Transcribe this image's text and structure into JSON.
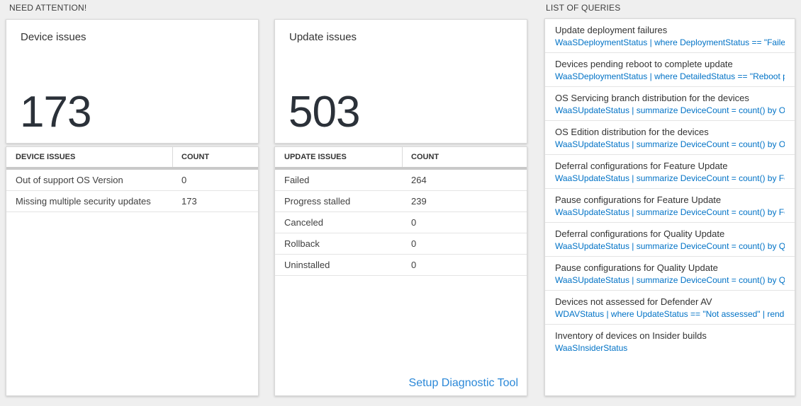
{
  "need_attention": {
    "header": "NEED ATTENTION!"
  },
  "queries_section": {
    "header": "LIST OF QUERIES"
  },
  "device_card": {
    "title": "Device issues",
    "value": "173"
  },
  "update_card": {
    "title": "Update issues",
    "value": "503"
  },
  "device_table": {
    "columns": [
      "DEVICE ISSUES",
      "COUNT"
    ],
    "rows": [
      [
        "Out of support OS Version",
        "0"
      ],
      [
        "Missing multiple security updates",
        "173"
      ]
    ]
  },
  "update_table": {
    "columns": [
      "UPDATE ISSUES",
      "COUNT"
    ],
    "rows": [
      [
        "Failed",
        "264"
      ],
      [
        "Progress stalled",
        "239"
      ],
      [
        "Canceled",
        "0"
      ],
      [
        "Rollback",
        "0"
      ],
      [
        "Uninstalled",
        "0"
      ]
    ]
  },
  "setup_link": "Setup Diagnostic Tool",
  "queries_list": [
    {
      "title": "Update deployment failures",
      "query": "WaaSDeploymentStatus | where DeploymentStatus == \"Failed\" |…"
    },
    {
      "title": "Devices pending reboot to complete update",
      "query": "WaaSDeploymentStatus | where DetailedStatus == \"Reboot pend…"
    },
    {
      "title": "OS Servicing branch distribution for the devices",
      "query": "WaaSUpdateStatus | summarize DeviceCount = count() by OSSer…"
    },
    {
      "title": "OS Edition distribution for the devices",
      "query": "WaaSUpdateStatus | summarize DeviceCount = count() by OSEdit…"
    },
    {
      "title": "Deferral configurations for Feature Update",
      "query": "WaaSUpdateStatus | summarize DeviceCount = count() by Featur…"
    },
    {
      "title": "Pause configurations for Feature Update",
      "query": "WaaSUpdateStatus | summarize DeviceCount = count() by Featur…"
    },
    {
      "title": "Deferral configurations for Quality Update",
      "query": "WaaSUpdateStatus | summarize DeviceCount = count() by Qualit…"
    },
    {
      "title": "Pause configurations for Quality Update",
      "query": "WaaSUpdateStatus | summarize DeviceCount = count() by Qualit…"
    },
    {
      "title": "Devices not assessed for Defender AV",
      "query": "WDAVStatus | where UpdateStatus == \"Not assessed\" | render ta…"
    },
    {
      "title": "Inventory of devices on Insider builds",
      "query": "WaaSInsiderStatus"
    }
  ],
  "colors": {
    "background": "#efefef",
    "panel": "#ffffff",
    "query_link_blue": "#0072c6",
    "action_link_blue": "#2b88d8",
    "big_number": "#2b3139",
    "header_bar": "#c9c9c9"
  }
}
